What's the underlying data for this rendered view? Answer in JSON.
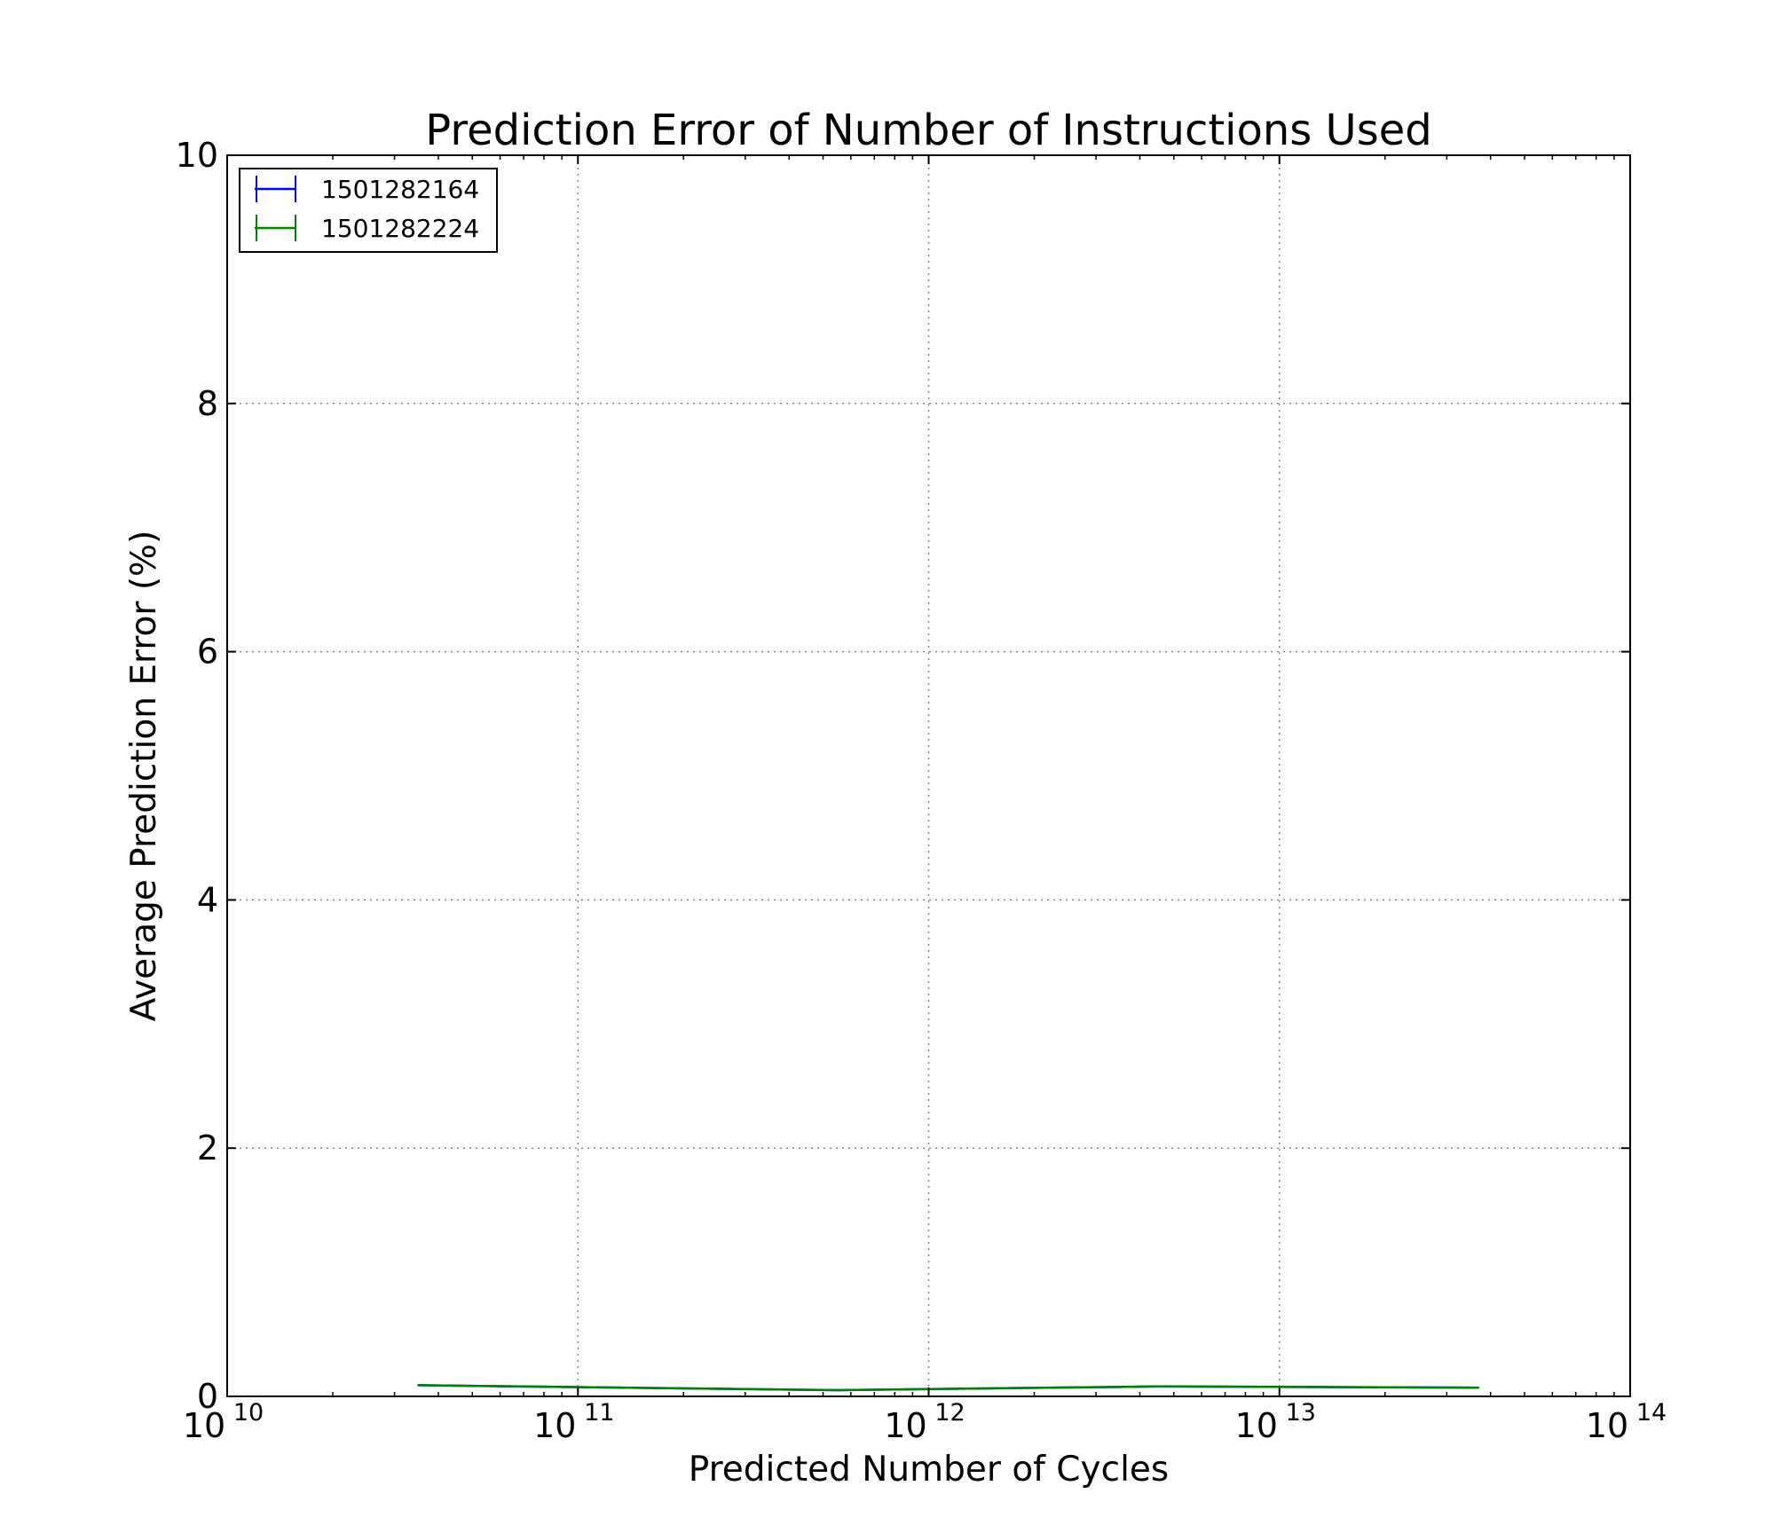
{
  "chart_data": {
    "type": "line",
    "title": "Prediction Error of Number of Instructions Used",
    "xlabel": "Predicted Number of Cycles",
    "ylabel": "Average Prediction Error (%)",
    "x_scale": "log",
    "xlim": [
      10000000000,
      100000000000000
    ],
    "ylim": [
      0,
      10
    ],
    "x_ticks": [
      {
        "value": 10000000000,
        "base": "10",
        "exp": "10"
      },
      {
        "value": 100000000000,
        "base": "10",
        "exp": "11"
      },
      {
        "value": 1000000000000,
        "base": "10",
        "exp": "12"
      },
      {
        "value": 10000000000000,
        "base": "10",
        "exp": "13"
      },
      {
        "value": 100000000000000,
        "base": "10",
        "exp": "14"
      }
    ],
    "y_ticks": [
      {
        "value": 0,
        "label": "0"
      },
      {
        "value": 2,
        "label": "2"
      },
      {
        "value": 4,
        "label": "4"
      },
      {
        "value": 6,
        "label": "6"
      },
      {
        "value": 8,
        "label": "8"
      },
      {
        "value": 10,
        "label": "10"
      }
    ],
    "grid": true,
    "legend_position": "top-left",
    "series": [
      {
        "name": "1501282164",
        "color": "#0000ff",
        "x": [
          35000000000,
          550000000000,
          4500000000000,
          37000000000000
        ],
        "y": [
          0.09,
          0.05,
          0.08,
          0.07
        ]
      },
      {
        "name": "1501282224",
        "color": "#007f00",
        "x": [
          35000000000,
          550000000000,
          4500000000000,
          37000000000000
        ],
        "y": [
          0.09,
          0.05,
          0.08,
          0.07
        ]
      }
    ]
  }
}
